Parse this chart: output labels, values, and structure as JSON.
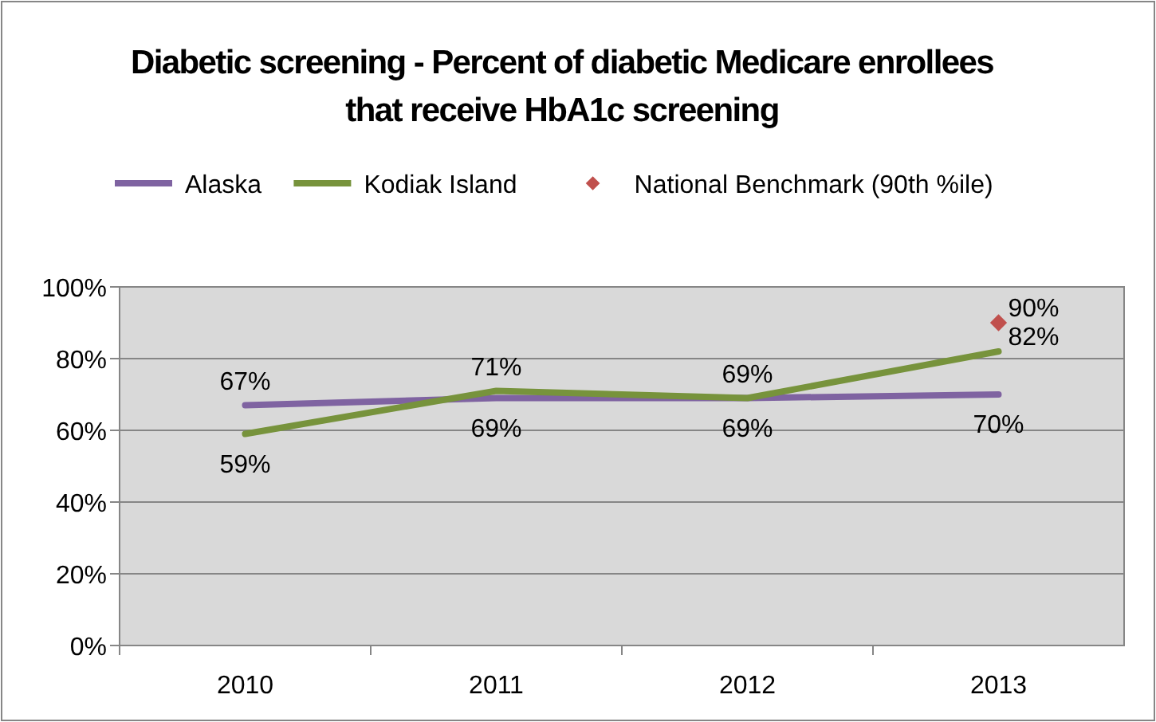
{
  "chart_data": {
    "type": "line",
    "title": "Diabetic screening - Percent of diabetic Medicare enrollees that receive HbA1c screening",
    "categories": [
      "2010",
      "2011",
      "2012",
      "2013"
    ],
    "series": [
      {
        "name": "Alaska",
        "color": "#7f63a1",
        "values": [
          67,
          69,
          69,
          70
        ],
        "value_labels": [
          "67%",
          "69%",
          "69%",
          "70%"
        ]
      },
      {
        "name": "Kodiak Island",
        "color": "#77933c",
        "values": [
          59,
          71,
          69,
          82
        ],
        "value_labels": [
          "59%",
          "71%",
          "69%",
          "82%"
        ]
      },
      {
        "name": "National Benchmark (90th %ile)",
        "type": "scatter",
        "marker": "diamond",
        "color": "#c0504d",
        "values": [
          null,
          null,
          null,
          90
        ],
        "value_labels": [
          null,
          null,
          null,
          "90%"
        ]
      }
    ],
    "ylim": [
      0,
      100
    ],
    "yticks": [
      {
        "value": 0,
        "label": "0%"
      },
      {
        "value": 20,
        "label": "20%"
      },
      {
        "value": 40,
        "label": "40%"
      },
      {
        "value": 60,
        "label": "60%"
      },
      {
        "value": 80,
        "label": "80%"
      },
      {
        "value": 100,
        "label": "100%"
      }
    ],
    "grid": "y",
    "legend": "top",
    "marker": "none",
    "line_style": "solid"
  }
}
